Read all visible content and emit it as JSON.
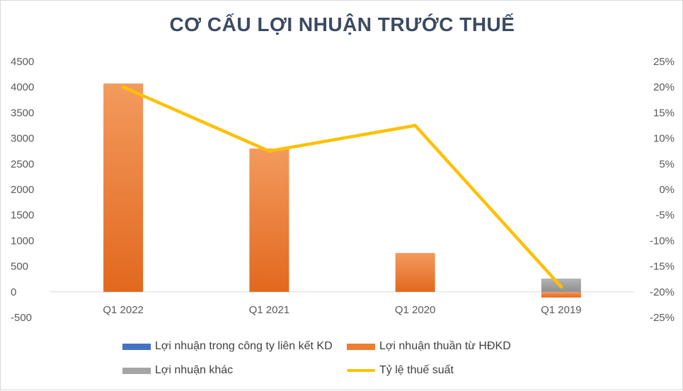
{
  "chart_data": {
    "type": "bar",
    "title": "CƠ CẤU LỢI NHUẬN TRƯỚC THUẾ",
    "stacked": true,
    "categories": [
      "Q1 2022",
      "Q1 2021",
      "Q1 2020",
      "Q1 2019"
    ],
    "series": [
      {
        "name": "Lợi nhuận trong công ty liên kết KD",
        "type": "bar",
        "axis": "left",
        "color": "#4472C4",
        "values": [
          0,
          0,
          0,
          0
        ]
      },
      {
        "name": "Lợi nhuận thuần từ HĐKD",
        "type": "bar",
        "axis": "left",
        "color": "#ED7D31",
        "values": [
          4070,
          2800,
          760,
          -110
        ]
      },
      {
        "name": "Lợi nhuận khác",
        "type": "bar",
        "axis": "left",
        "color": "#A5A5A5",
        "values": [
          0,
          0,
          0,
          260
        ]
      },
      {
        "name": "Tỷ lệ thuế suất",
        "type": "line",
        "axis": "right",
        "color": "#FFC000",
        "values": [
          20,
          7.5,
          12.5,
          -19
        ]
      }
    ],
    "y_left": {
      "min": -500,
      "max": 4500,
      "step": 500,
      "ticks": [
        "-500",
        "0",
        "500",
        "1000",
        "1500",
        "2000",
        "2500",
        "3000",
        "3500",
        "4000",
        "4500"
      ]
    },
    "y_right": {
      "min": -25,
      "max": 25,
      "step": 5,
      "ticks": [
        "-25%",
        "-20%",
        "-15%",
        "-10%",
        "-5%",
        "0%",
        "5%",
        "10%",
        "15%",
        "20%",
        "25%"
      ]
    },
    "grid": false,
    "legend_position": "bottom"
  }
}
